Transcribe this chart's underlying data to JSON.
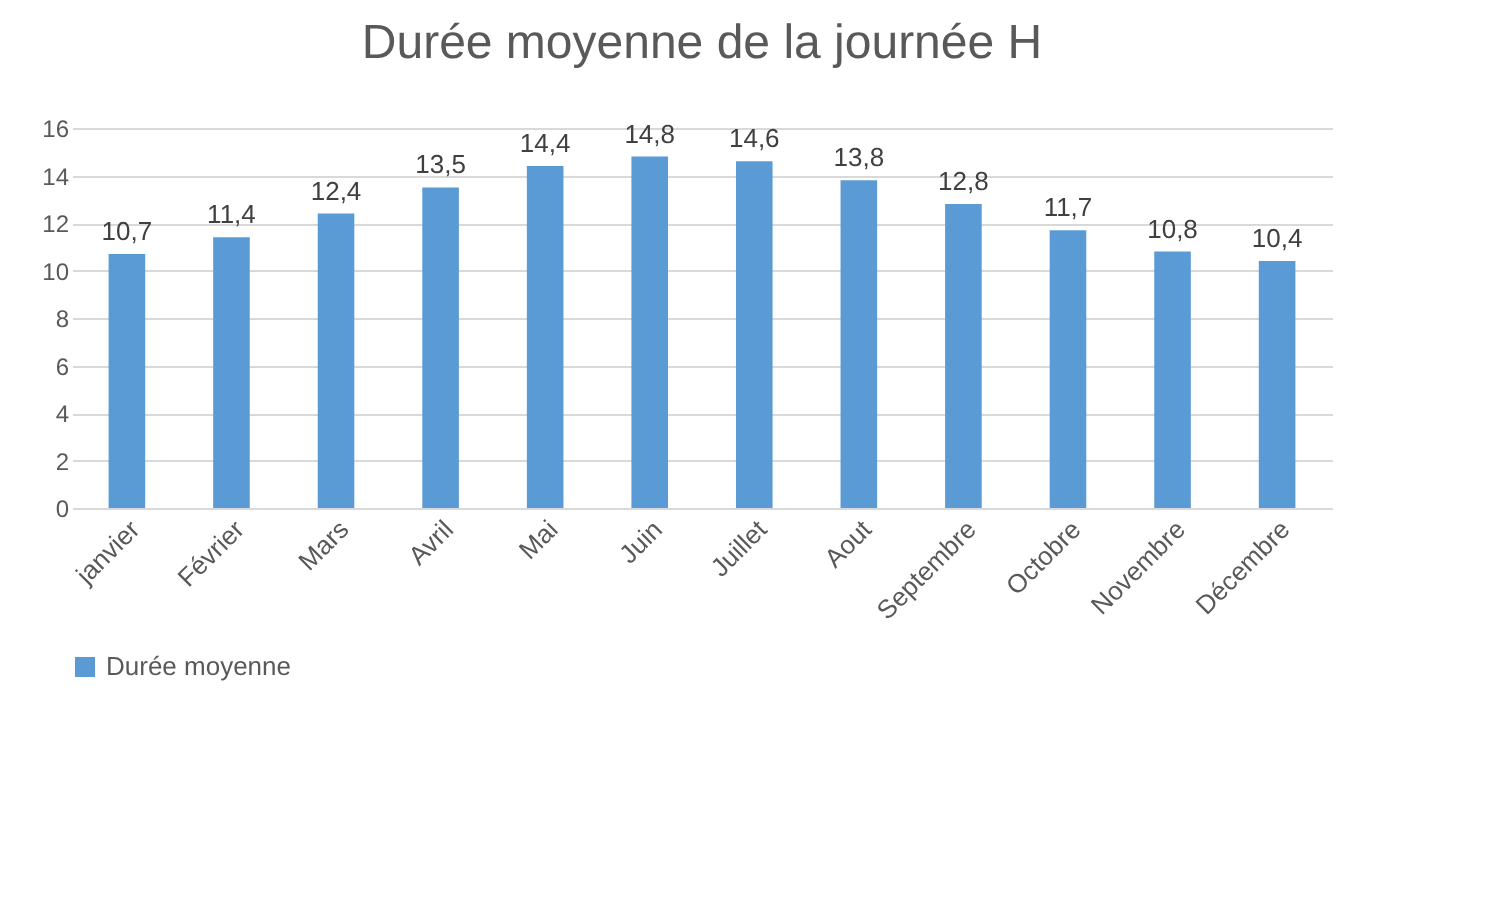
{
  "chart_data": {
    "type": "bar",
    "title": "Durée moyenne de la journée H",
    "categories": [
      "janvier",
      "Février",
      "Mars",
      "Avril",
      "Mai",
      "Juin",
      "Juillet",
      "Aout",
      "Septembre",
      "Octobre",
      "Novembre",
      "Décembre"
    ],
    "series": [
      {
        "name": "Durée moyenne",
        "color": "#5b9bd5",
        "values": [
          10.7,
          11.4,
          12.4,
          13.5,
          14.4,
          14.8,
          14.6,
          13.8,
          12.8,
          11.7,
          10.8,
          10.4
        ],
        "value_labels": [
          "10,7",
          "11,4",
          "12,4",
          "13,5",
          "14,4",
          "14,8",
          "14,6",
          "13,8",
          "12,8",
          "11,7",
          "10,8",
          "10,4"
        ]
      }
    ],
    "ylim": [
      0,
      16
    ],
    "yticks": [
      0,
      2,
      4,
      6,
      8,
      10,
      12,
      14,
      16
    ],
    "grid": "y",
    "legend": "bottom"
  }
}
